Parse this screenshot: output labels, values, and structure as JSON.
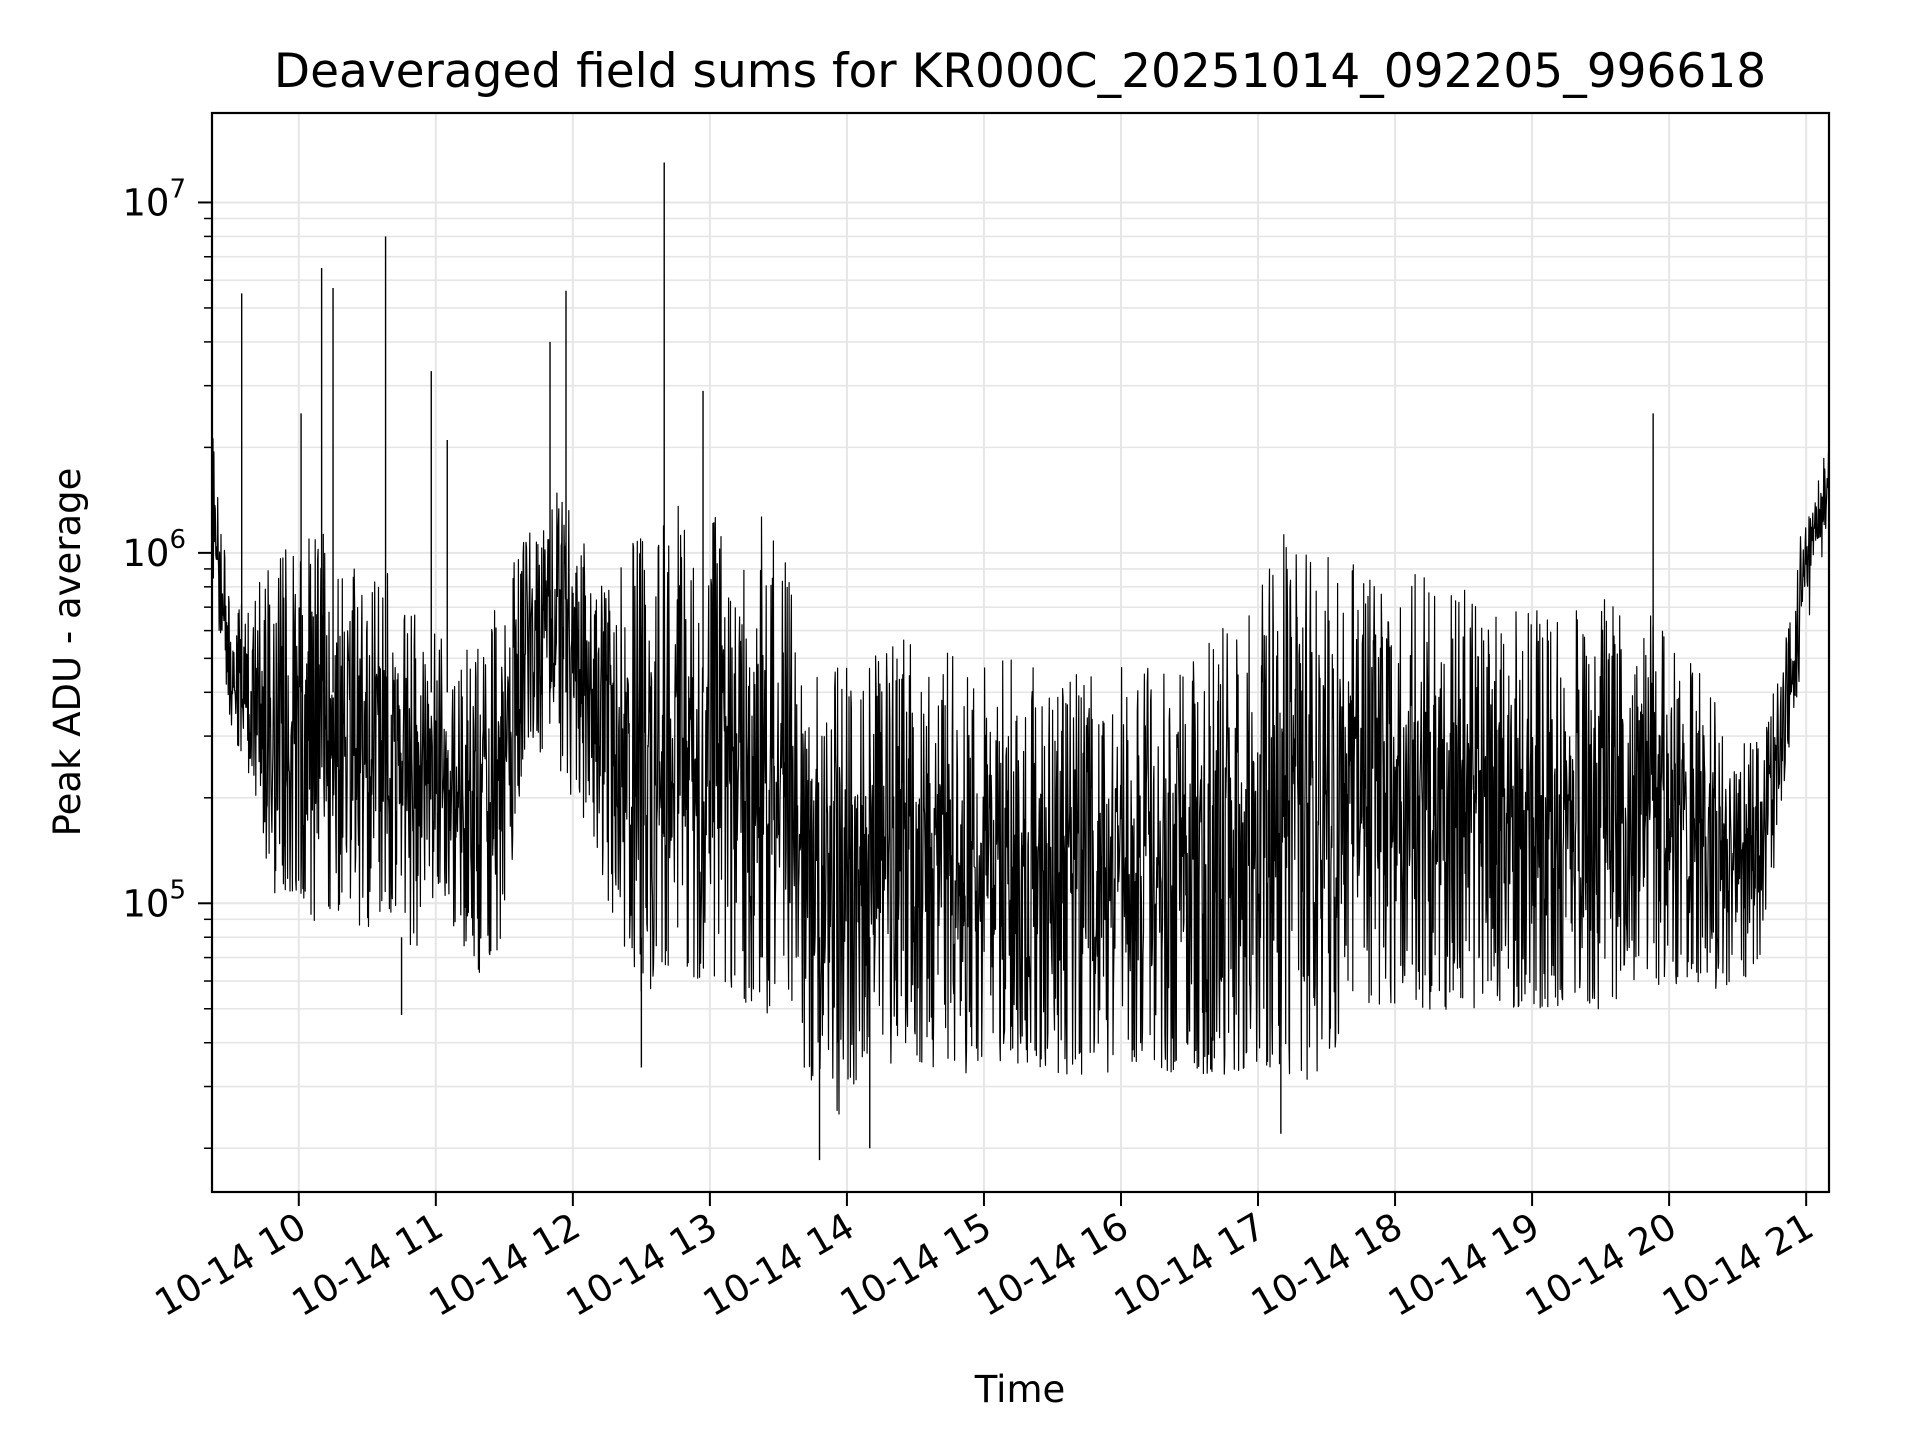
{
  "chart_data": {
    "type": "line",
    "title": "Deaveraged field sums for KR000C_20251014_092205_996618",
    "xlabel": "Time",
    "ylabel": "Peak ADU - average",
    "y_scale": "log",
    "ylim": [
      15000,
      18000000
    ],
    "xlim": [
      "2025-10-14 09:22",
      "2025-10-14 21:10"
    ],
    "grid": true,
    "line_color": "#000000",
    "grid_color": "#e6e6e6",
    "x_ticks": [
      {
        "value": "2025-10-14 10:00",
        "label": "10-14 10"
      },
      {
        "value": "2025-10-14 11:00",
        "label": "10-14 11"
      },
      {
        "value": "2025-10-14 12:00",
        "label": "10-14 12"
      },
      {
        "value": "2025-10-14 13:00",
        "label": "10-14 13"
      },
      {
        "value": "2025-10-14 14:00",
        "label": "10-14 14"
      },
      {
        "value": "2025-10-14 15:00",
        "label": "10-14 15"
      },
      {
        "value": "2025-10-14 16:00",
        "label": "10-14 16"
      },
      {
        "value": "2025-10-14 17:00",
        "label": "10-14 17"
      },
      {
        "value": "2025-10-14 18:00",
        "label": "10-14 18"
      },
      {
        "value": "2025-10-14 19:00",
        "label": "10-14 19"
      },
      {
        "value": "2025-10-14 20:00",
        "label": "10-14 20"
      },
      {
        "value": "2025-10-14 21:00",
        "label": "10-14 21"
      }
    ],
    "y_ticks": [
      {
        "value": 100000,
        "base": "10",
        "exp": "5"
      },
      {
        "value": 1000000,
        "base": "10",
        "exp": "6"
      },
      {
        "value": 10000000,
        "base": "10",
        "exp": "7"
      }
    ],
    "series": [
      {
        "x": [
          "2025-10-14 09:22",
          "2025-10-14 09:30",
          "2025-10-14 09:40",
          "2025-10-14 09:50",
          "2025-10-14 10:00",
          "2025-10-14 10:10",
          "2025-10-14 10:20",
          "2025-10-14 10:30",
          "2025-10-14 10:40",
          "2025-10-14 10:50",
          "2025-10-14 11:00",
          "2025-10-14 11:10",
          "2025-10-14 11:20",
          "2025-10-14 11:30",
          "2025-10-14 11:40",
          "2025-10-14 11:50",
          "2025-10-14 12:00",
          "2025-10-14 12:10",
          "2025-10-14 12:20",
          "2025-10-14 12:30",
          "2025-10-14 12:40",
          "2025-10-14 12:50",
          "2025-10-14 13:00",
          "2025-10-14 13:10",
          "2025-10-14 13:20",
          "2025-10-14 13:30",
          "2025-10-14 13:40",
          "2025-10-14 13:50",
          "2025-10-14 14:00",
          "2025-10-14 14:10",
          "2025-10-14 14:20",
          "2025-10-14 14:30",
          "2025-10-14 14:40",
          "2025-10-14 14:50",
          "2025-10-14 15:00",
          "2025-10-14 15:10",
          "2025-10-14 15:20",
          "2025-10-14 15:30",
          "2025-10-14 15:40",
          "2025-10-14 15:50",
          "2025-10-14 16:00",
          "2025-10-14 16:10",
          "2025-10-14 16:20",
          "2025-10-14 16:30",
          "2025-10-14 16:40",
          "2025-10-14 16:50",
          "2025-10-14 17:00",
          "2025-10-14 17:10",
          "2025-10-14 17:20",
          "2025-10-14 17:30",
          "2025-10-14 17:40",
          "2025-10-14 17:50",
          "2025-10-14 18:00",
          "2025-10-14 18:10",
          "2025-10-14 18:20",
          "2025-10-14 18:30",
          "2025-10-14 18:40",
          "2025-10-14 18:50",
          "2025-10-14 19:00",
          "2025-10-14 19:10",
          "2025-10-14 19:20",
          "2025-10-14 19:30",
          "2025-10-14 19:40",
          "2025-10-14 19:50",
          "2025-10-14 20:00",
          "2025-10-14 20:10",
          "2025-10-14 20:20",
          "2025-10-14 20:30",
          "2025-10-14 20:40",
          "2025-10-14 20:50",
          "2025-10-14 21:00",
          "2025-10-14 21:10"
        ],
        "low": [
          900000,
          300000,
          200000,
          100000,
          110000,
          80000,
          100000,
          80000,
          90000,
          70000,
          90000,
          80000,
          60000,
          80000,
          300000,
          250000,
          200000,
          150000,
          70000,
          55000,
          60000,
          60000,
          60000,
          55000,
          50000,
          45000,
          35000,
          25000,
          25000,
          35000,
          35000,
          35000,
          33000,
          32000,
          35000,
          35000,
          35000,
          33000,
          32000,
          33000,
          33000,
          35000,
          33000,
          32000,
          32000,
          33000,
          35000,
          33000,
          30000,
          30000,
          50000,
          50000,
          50000,
          50000,
          48000,
          50000,
          50000,
          50000,
          50000,
          50000,
          50000,
          50000,
          55000,
          55000,
          60000,
          55000,
          55000,
          60000,
          65000,
          200000,
          600000,
          1200000
        ],
        "high": [
          2500000,
          700000,
          800000,
          1000000,
          1200000,
          1200000,
          1000000,
          800000,
          900000,
          700000,
          600000,
          500000,
          600000,
          800000,
          1200000,
          1500000,
          1500000,
          800000,
          900000,
          1200000,
          1300000,
          1400000,
          1400000,
          1300000,
          1300000,
          1200000,
          600000,
          500000,
          500000,
          600000,
          600000,
          600000,
          550000,
          500000,
          500000,
          500000,
          480000,
          450000,
          450000,
          480000,
          500000,
          480000,
          500000,
          550000,
          600000,
          650000,
          800000,
          1200000,
          1100000,
          1000000,
          1000000,
          900000,
          900000,
          900000,
          800000,
          800000,
          700000,
          700000,
          700000,
          700000,
          700000,
          800000,
          700000,
          700000,
          600000,
          500000,
          400000,
          300000,
          300000,
          500000,
          1500000,
          2000000
        ]
      }
    ],
    "spikes": [
      {
        "x": "2025-10-14 09:35",
        "y": 5500000
      },
      {
        "x": "2025-10-14 10:01",
        "y": 2500000
      },
      {
        "x": "2025-10-14 10:10",
        "y": 6500000
      },
      {
        "x": "2025-10-14 10:15",
        "y": 5700000
      },
      {
        "x": "2025-10-14 10:38",
        "y": 8000000
      },
      {
        "x": "2025-10-14 10:58",
        "y": 3300000
      },
      {
        "x": "2025-10-14 11:05",
        "y": 2100000
      },
      {
        "x": "2025-10-14 11:50",
        "y": 4000000
      },
      {
        "x": "2025-10-14 11:57",
        "y": 5600000
      },
      {
        "x": "2025-10-14 12:40",
        "y": 13000000
      },
      {
        "x": "2025-10-14 12:57",
        "y": 2900000
      },
      {
        "x": "2025-10-14 19:53",
        "y": 2500000
      }
    ],
    "dips": [
      {
        "x": "2025-10-14 13:48",
        "y": 18500
      },
      {
        "x": "2025-10-14 14:10",
        "y": 20000
      },
      {
        "x": "2025-10-14 17:10",
        "y": 22000
      },
      {
        "x": "2025-10-14 12:30",
        "y": 34000
      },
      {
        "x": "2025-10-14 10:45",
        "y": 48000
      }
    ]
  }
}
